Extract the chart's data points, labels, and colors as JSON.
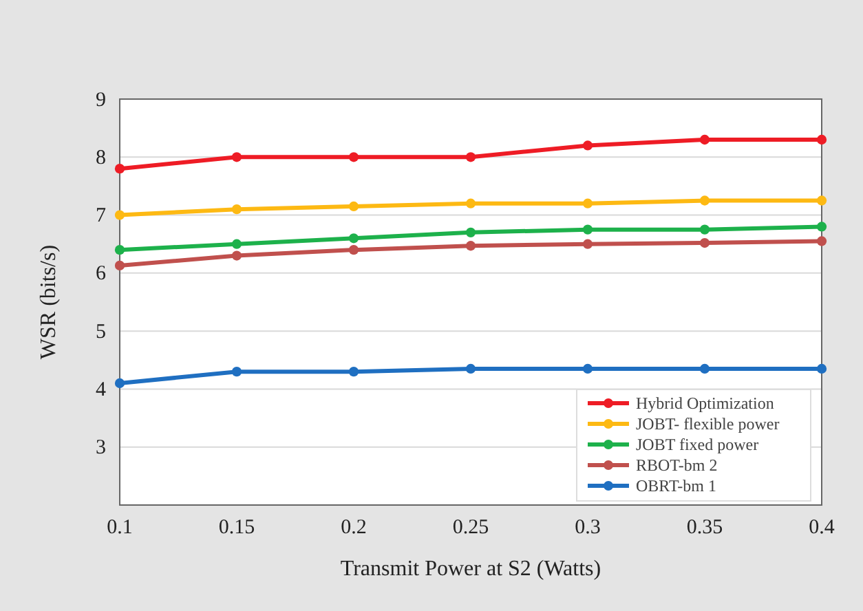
{
  "chart_data": {
    "type": "line",
    "xlabel": "Transmit Power at S2 (Watts)",
    "ylabel": "WSR (bits/s)",
    "x": [
      0.1,
      0.15,
      0.2,
      0.25,
      0.3,
      0.35,
      0.4
    ],
    "xlim": [
      0.1,
      0.4
    ],
    "xticks": [
      0.1,
      0.15,
      0.2,
      0.25,
      0.3,
      0.35,
      0.4
    ],
    "ylim": [
      2,
      9
    ],
    "yticks": [
      3,
      4,
      5,
      6,
      7,
      8,
      9
    ],
    "grid": "y",
    "legend": "bottom right",
    "marker": "circle",
    "line_style": "solid",
    "series": [
      {
        "name": "Hybrid Optimization",
        "color": "#ee1c25",
        "values": [
          7.8,
          8,
          8,
          8,
          8.2,
          8.3,
          8.3
        ]
      },
      {
        "name": "JOBT- flexible power",
        "color": "#fdb913",
        "values": [
          7,
          7.1,
          7.15,
          7.2,
          7.2,
          7.25,
          7.25
        ]
      },
      {
        "name": "JOBT fixed power",
        "color": "#1db14b",
        "values": [
          6.4,
          6.5,
          6.6,
          6.7,
          6.75,
          6.75,
          6.8
        ]
      },
      {
        "name": "RBOT-bm 2",
        "color": "#c0504d",
        "values": [
          6.13,
          6.3,
          6.4,
          6.47,
          6.5,
          6.52,
          6.55
        ]
      },
      {
        "name": "OBRT-bm 1",
        "color": "#1f6fc1",
        "values": [
          4.1,
          4.3,
          4.3,
          4.35,
          4.35,
          4.35,
          4.35
        ]
      }
    ]
  }
}
